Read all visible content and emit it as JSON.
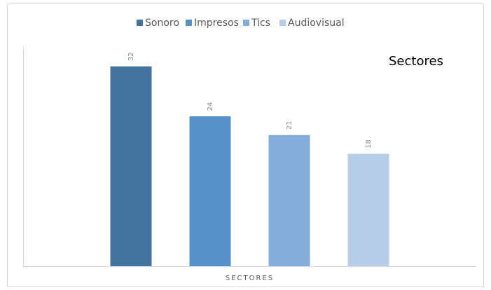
{
  "chart_data": {
    "type": "bar",
    "title": "Sectores",
    "categories": [
      "SECTORES"
    ],
    "series": [
      {
        "name": "Sonoro",
        "color": "#44729f",
        "values": [
          32
        ]
      },
      {
        "name": "Impresos",
        "color": "#5690c8",
        "values": [
          24
        ]
      },
      {
        "name": "Tics",
        "color": "#83acda",
        "values": [
          21
        ]
      },
      {
        "name": "Audiovisual",
        "color": "#b8cde8",
        "values": [
          18
        ]
      }
    ],
    "ylim": [
      0,
      35
    ],
    "legend": "top"
  }
}
